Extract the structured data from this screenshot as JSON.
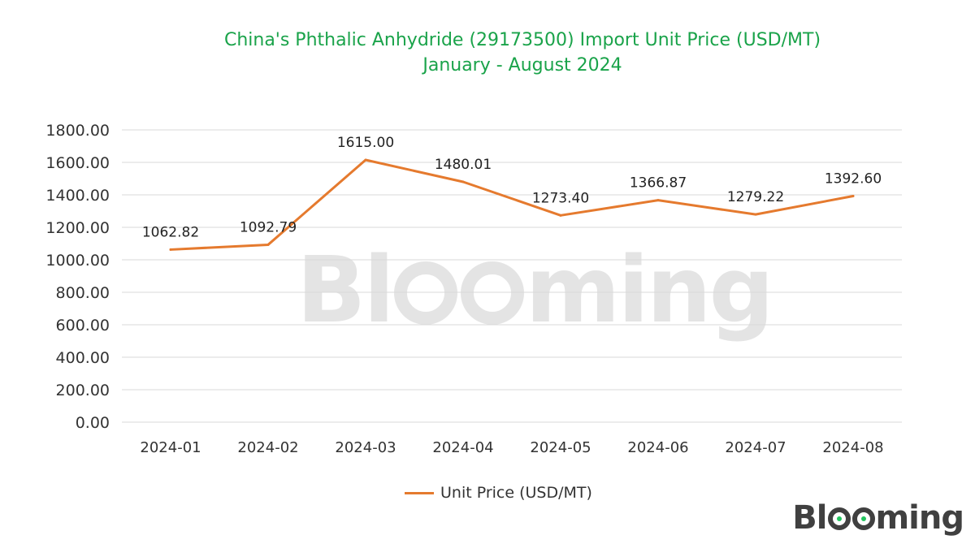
{
  "title_line1": "China's Phthalic Anhydride (29173500) Import Unit Price (USD/MT)",
  "title_line2": "January - August 2024",
  "brand": "Blooming",
  "colors": {
    "title": "#1aa34a",
    "series": "#e57a2e",
    "grid": "#d9d9d9"
  },
  "chart_data": {
    "type": "line",
    "title": "China's Phthalic Anhydride (29173500) Import Unit Price (USD/MT)",
    "subtitle": "January - August 2024",
    "categories": [
      "2024-01",
      "2024-02",
      "2024-03",
      "2024-04",
      "2024-05",
      "2024-06",
      "2024-07",
      "2024-08"
    ],
    "series": [
      {
        "name": "Unit Price (USD/MT)",
        "values": [
          1062.82,
          1092.79,
          1615.0,
          1480.01,
          1273.4,
          1366.87,
          1279.22,
          1392.6
        ]
      }
    ],
    "data_labels": [
      "1062.82",
      "1092.79",
      "1615.00",
      "1480.01",
      "1273.40",
      "1366.87",
      "1279.22",
      "1392.60"
    ],
    "y_ticks": [
      "0.00",
      "200.00",
      "400.00",
      "600.00",
      "800.00",
      "1000.00",
      "1200.00",
      "1400.00",
      "1600.00",
      "1800.00"
    ],
    "ylim": [
      0,
      1800
    ],
    "xlabel": "",
    "ylabel": "",
    "grid": true,
    "legend": "bottom"
  }
}
